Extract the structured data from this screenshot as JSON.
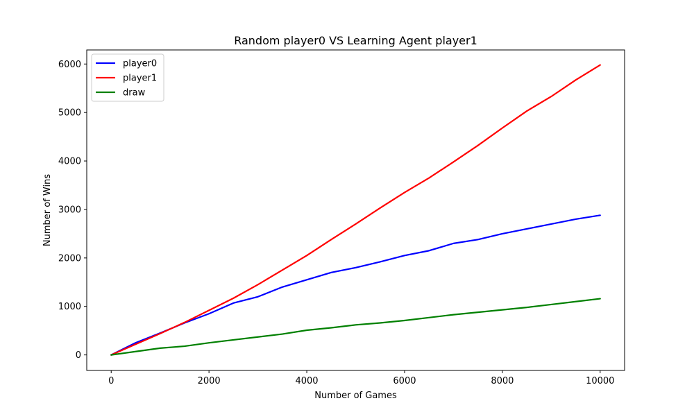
{
  "chart_data": {
    "type": "line",
    "title": "Random player0 VS Learning Agent player1",
    "xlabel": "Number of Games",
    "ylabel": "Number of Wins",
    "xlim": [
      -500,
      10500
    ],
    "ylim": [
      -320,
      6290
    ],
    "xticks": [
      0,
      2000,
      4000,
      6000,
      8000,
      10000
    ],
    "xtick_labels": [
      "0",
      "2000",
      "4000",
      "6000",
      "8000",
      "10000"
    ],
    "yticks": [
      0,
      1000,
      2000,
      3000,
      4000,
      5000,
      6000
    ],
    "ytick_labels": [
      "0",
      "1000",
      "2000",
      "3000",
      "4000",
      "5000",
      "6000"
    ],
    "grid": false,
    "legend_position": "top-left",
    "series": [
      {
        "name": "player0",
        "color": "#0000ff",
        "x": [
          0,
          500,
          1000,
          1500,
          2000,
          2500,
          3000,
          3500,
          4000,
          4500,
          5000,
          5500,
          6000,
          6500,
          7000,
          7500,
          8000,
          8500,
          9000,
          9500,
          10000
        ],
        "y": [
          0,
          250,
          450,
          660,
          850,
          1070,
          1200,
          1400,
          1550,
          1700,
          1800,
          1920,
          2050,
          2150,
          2300,
          2380,
          2500,
          2600,
          2700,
          2800,
          2880
        ]
      },
      {
        "name": "player1",
        "color": "#ff0000",
        "x": [
          0,
          500,
          1000,
          1500,
          2000,
          2500,
          3000,
          3500,
          4000,
          4500,
          5000,
          5500,
          6000,
          6500,
          7000,
          7500,
          8000,
          8500,
          9000,
          9500,
          10000
        ],
        "y": [
          0,
          220,
          440,
          670,
          920,
          1170,
          1450,
          1750,
          2050,
          2380,
          2700,
          3030,
          3350,
          3650,
          3980,
          4320,
          4680,
          5030,
          5330,
          5670,
          5980
        ]
      },
      {
        "name": "draw",
        "color": "#008000",
        "x": [
          0,
          500,
          1000,
          1500,
          2000,
          2500,
          3000,
          3500,
          4000,
          4500,
          5000,
          5500,
          6000,
          6500,
          7000,
          7500,
          8000,
          8500,
          9000,
          9500,
          10000
        ],
        "y": [
          0,
          70,
          140,
          180,
          250,
          310,
          370,
          430,
          510,
          560,
          620,
          660,
          710,
          770,
          830,
          880,
          930,
          980,
          1040,
          1100,
          1160
        ]
      }
    ]
  }
}
